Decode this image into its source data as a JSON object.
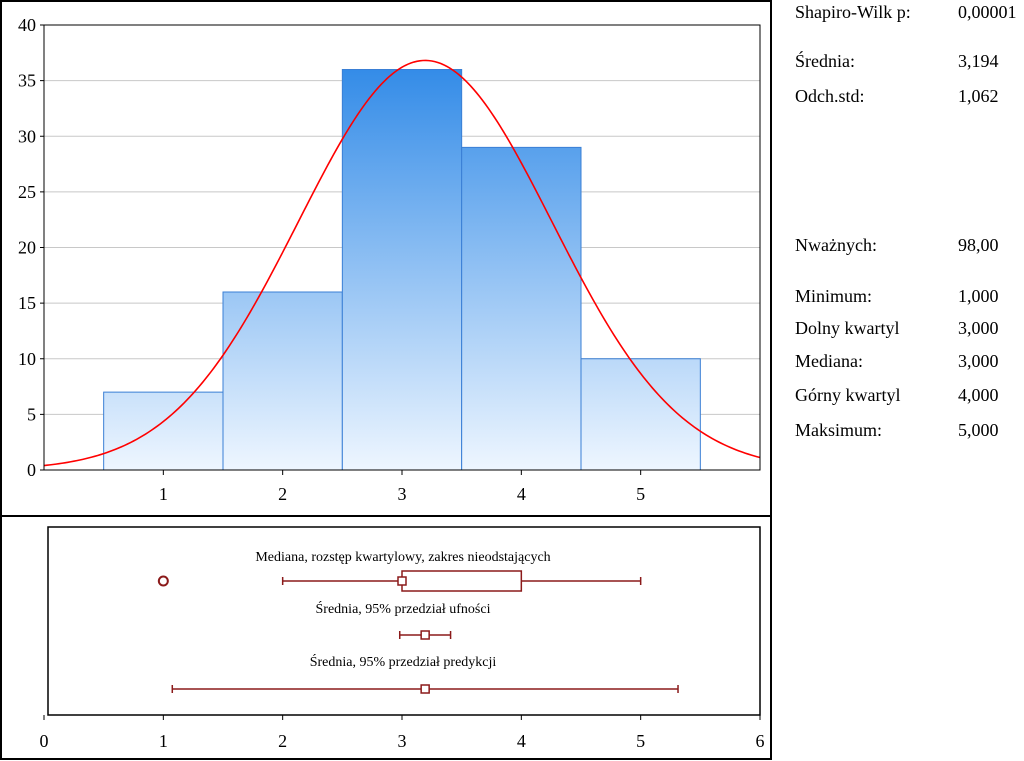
{
  "chart_data": [
    {
      "type": "bar",
      "x": [
        1,
        2,
        3,
        4,
        5
      ],
      "values": [
        7,
        16,
        36,
        29,
        10
      ],
      "bin_width": 1,
      "xlim": [
        0,
        6
      ],
      "ylim": [
        0,
        40
      ],
      "xticks": [
        1,
        2,
        3,
        4,
        5
      ],
      "yticks": [
        0,
        5,
        10,
        15,
        20,
        25,
        30,
        35,
        40
      ],
      "grid": true,
      "normal_fit": {
        "mean": 3.194,
        "sd": 1.062,
        "n": 98
      },
      "colors": {
        "bar_fill_top": "#1f80e5",
        "bar_fill_bottom": "#eef6ff",
        "bar_stroke": "#3a7fd5",
        "curve": "#ff0000",
        "grid": "#c8c8c8"
      }
    },
    {
      "type": "box",
      "xlim": [
        0,
        6
      ],
      "xticks": [
        0,
        1,
        2,
        3,
        4,
        5,
        6
      ],
      "color": "#8b1a1a",
      "rows": [
        {
          "label": "Mediana, rozstęp kwartylowy, zakres nieodstających",
          "median": 3,
          "q1": 3,
          "q3": 4,
          "whisker_low": 2,
          "whisker_high": 5,
          "outliers": [
            1
          ]
        },
        {
          "label": "Średnia, 95% przedział ufności",
          "mean": 3.194,
          "low": 2.981,
          "high": 3.407
        },
        {
          "label": "Średnia, 95% przedział predykcji",
          "mean": 3.194,
          "low": 1.075,
          "high": 5.313
        }
      ]
    }
  ],
  "stats": {
    "shapiro": {
      "label": "Shapiro-Wilk p:",
      "value": "0,00001"
    },
    "mean": {
      "label": "Średnia:",
      "value": "3,194"
    },
    "sd": {
      "label": "Odch.std:",
      "value": "1,062"
    },
    "n_valid": {
      "label": "Nważnych:",
      "value": "98,00"
    },
    "min": {
      "label": "Minimum:",
      "value": "1,000"
    },
    "q1": {
      "label": "Dolny kwartyl",
      "value": "3,000"
    },
    "median": {
      "label": "Mediana:",
      "value": "3,000"
    },
    "q3": {
      "label": "Górny kwartyl",
      "value": "4,000"
    },
    "max": {
      "label": "Maksimum:",
      "value": "5,000"
    }
  }
}
